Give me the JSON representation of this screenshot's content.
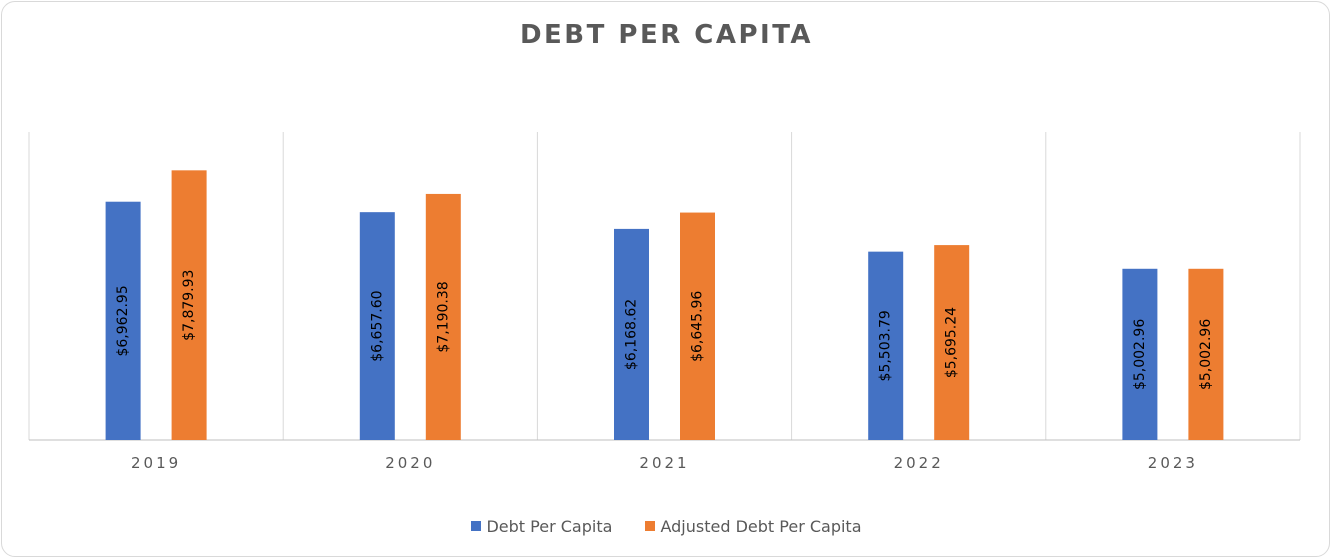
{
  "chart_data": {
    "type": "bar",
    "title": "DEBT PER CAPITA",
    "categories": [
      "2019",
      "2020",
      "2021",
      "2022",
      "2023"
    ],
    "series": [
      {
        "name": "Debt Per Capita",
        "color": "#4472C4",
        "values": [
          6962.95,
          6657.6,
          6168.62,
          5503.79,
          5002.96
        ],
        "labels": [
          "$6,962.95",
          "$6,657.60",
          "$6,168.62",
          "$5,503.79",
          "$5,002.96"
        ]
      },
      {
        "name": "Adjusted Debt Per Capita",
        "color": "#ED7D31",
        "values": [
          7879.93,
          7190.38,
          6645.96,
          5695.24,
          5002.96
        ],
        "labels": [
          "$7,879.93",
          "$7,190.38",
          "$6,645.96",
          "$5,695.24",
          "$5,002.96"
        ]
      }
    ],
    "ylim": [
      0,
      9000
    ],
    "grid": false,
    "legend_position": "bottom"
  }
}
